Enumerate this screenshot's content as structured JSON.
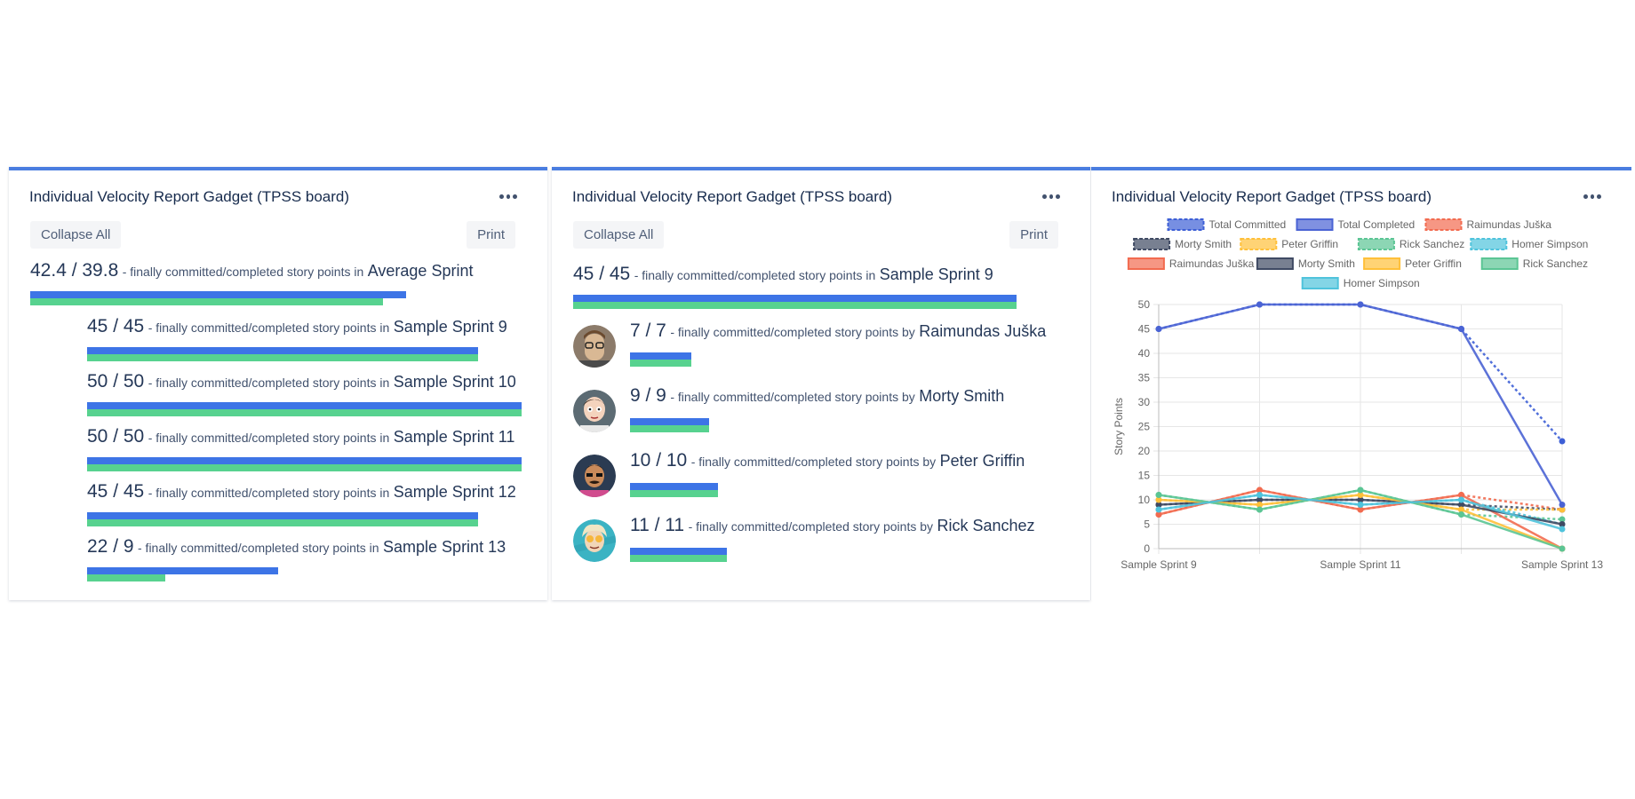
{
  "gadgets": [
    {
      "title": "Individual Velocity Report Gadget (TPSS board)",
      "collapse_label": "Collapse All",
      "print_label": "Print",
      "summary": {
        "value": "42.4 / 39.8",
        "text": "- finally committed/completed story points in",
        "name": "Average Sprint",
        "committed": 42.4,
        "completed": 39.8
      },
      "sprints": [
        {
          "value": "45 / 45",
          "text": "- finally committed/completed story points in",
          "name": "Sample Sprint 9",
          "committed": 45,
          "completed": 45
        },
        {
          "value": "50 / 50",
          "text": "- finally committed/completed story points in",
          "name": "Sample Sprint 10",
          "committed": 50,
          "completed": 50
        },
        {
          "value": "50 / 50",
          "text": "- finally committed/completed story points in",
          "name": "Sample Sprint 11",
          "committed": 50,
          "completed": 50
        },
        {
          "value": "45 / 45",
          "text": "- finally committed/completed story points in",
          "name": "Sample Sprint 12",
          "committed": 45,
          "completed": 45
        },
        {
          "value": "22 / 9",
          "text": "- finally committed/completed story points in",
          "name": "Sample Sprint 13",
          "committed": 22,
          "completed": 9
        }
      ]
    },
    {
      "title": "Individual Velocity Report Gadget (TPSS board)",
      "collapse_label": "Collapse All",
      "print_label": "Print",
      "summary": {
        "value": "45 / 45",
        "text": "- finally committed/completed story points in",
        "name": "Sample Sprint 9",
        "committed": 45,
        "completed": 45
      },
      "people": [
        {
          "value": "7 / 7",
          "text": "- finally committed/completed story points by",
          "name": "Raimundas Juška",
          "committed": 7,
          "completed": 7,
          "avatar": "person-with-glasses"
        },
        {
          "value": "9 / 9",
          "text": "- finally committed/completed story points by",
          "name": "Morty Smith",
          "committed": 9,
          "completed": 9,
          "avatar": "cartoon-boy"
        },
        {
          "value": "10 / 10",
          "text": "- finally committed/completed story points by",
          "name": "Peter Griffin",
          "committed": 10,
          "completed": 10,
          "avatar": "cartoon-man-glasses"
        },
        {
          "value": "11 / 11",
          "text": "- finally committed/completed story points by",
          "name": "Rick Sanchez",
          "committed": 11,
          "completed": 11,
          "avatar": "cartoon-scientist"
        }
      ]
    },
    {
      "title": "Individual Velocity Report Gadget (TPSS board)"
    }
  ],
  "colors": {
    "committed_bar": "#3d74e6",
    "completed_bar": "#57d28f",
    "accent_border": "#4a7de0"
  },
  "chart_data": {
    "type": "line",
    "ylabel": "Story Points",
    "ylim": [
      0,
      50
    ],
    "yticks": [
      0,
      5,
      10,
      15,
      20,
      25,
      30,
      35,
      40,
      45,
      50
    ],
    "x": [
      "Sample Sprint 9",
      "Sample Sprint 10",
      "Sample Sprint 11",
      "Sample Sprint 12",
      "Sample Sprint 13"
    ],
    "xtick_labels": [
      "Sample Sprint 9",
      "",
      "Sample Sprint 11",
      "",
      "Sample Sprint 13"
    ],
    "grid": true,
    "legend_position": "top",
    "series": [
      {
        "name": "Total Committed",
        "dashed": true,
        "color": "#3d5fd6",
        "values": [
          45,
          50,
          50,
          45,
          22
        ]
      },
      {
        "name": "Total Completed",
        "dashed": false,
        "color": "#4a63d4",
        "values": [
          45,
          50,
          50,
          45,
          9
        ]
      },
      {
        "name": "Raimundas Juška",
        "dashed": true,
        "color": "#f26b50",
        "values": [
          7,
          12,
          8,
          11,
          8
        ]
      },
      {
        "name": "Morty Smith",
        "dashed": true,
        "color": "#3f4a63",
        "values": [
          9,
          10,
          10,
          9,
          8
        ]
      },
      {
        "name": "Peter Griffin",
        "dashed": true,
        "color": "#ffc03a",
        "values": [
          10,
          9,
          11,
          8,
          8
        ]
      },
      {
        "name": "Rick Sanchez",
        "dashed": true,
        "color": "#5bc594",
        "values": [
          11,
          8,
          12,
          7,
          6
        ]
      },
      {
        "name": "Homer Simpson",
        "dashed": true,
        "color": "#4fc3dc",
        "values": [
          8,
          11,
          9,
          10,
          5
        ]
      },
      {
        "name": "Raimundas Juška",
        "dashed": false,
        "color": "#f26b50",
        "values": [
          7,
          12,
          8,
          11,
          0
        ]
      },
      {
        "name": "Morty Smith",
        "dashed": false,
        "color": "#3f4a63",
        "values": [
          9,
          10,
          10,
          9,
          5
        ]
      },
      {
        "name": "Peter Griffin",
        "dashed": false,
        "color": "#ffc03a",
        "values": [
          10,
          9,
          11,
          8,
          0
        ]
      },
      {
        "name": "Rick Sanchez",
        "dashed": false,
        "color": "#5bc594",
        "values": [
          11,
          8,
          12,
          7,
          0
        ]
      },
      {
        "name": "Homer Simpson",
        "dashed": false,
        "color": "#4fc3dc",
        "values": [
          8,
          11,
          9,
          10,
          4
        ]
      }
    ]
  }
}
